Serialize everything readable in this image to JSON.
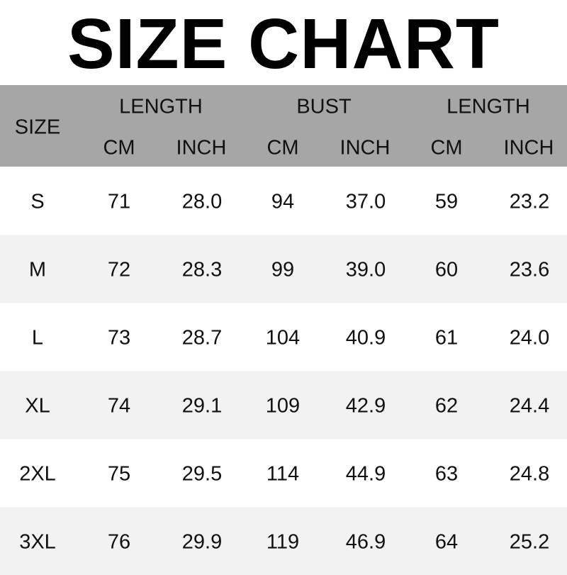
{
  "title": "SIZE CHART",
  "colors": {
    "header_bg": "#a6a6a6",
    "alt_row_bg": "#f2f2f2",
    "text": "#111111"
  },
  "header": {
    "size": "SIZE",
    "groups": [
      "LENGTH",
      "BUST",
      "LENGTH"
    ],
    "units": [
      "CM",
      "INCH",
      "CM",
      "INCH",
      "CM",
      "INCH"
    ]
  },
  "rows": [
    [
      "S",
      "71",
      "28.0",
      "94",
      "37.0",
      "59",
      "23.2"
    ],
    [
      "M",
      "72",
      "28.3",
      "99",
      "39.0",
      "60",
      "23.6"
    ],
    [
      "L",
      "73",
      "28.7",
      "104",
      "40.9",
      "61",
      "24.0"
    ],
    [
      "XL",
      "74",
      "29.1",
      "109",
      "42.9",
      "62",
      "24.4"
    ],
    [
      "2XL",
      "75",
      "29.5",
      "114",
      "44.9",
      "63",
      "24.8"
    ],
    [
      "3XL",
      "76",
      "29.9",
      "119",
      "46.9",
      "64",
      "25.2"
    ]
  ]
}
